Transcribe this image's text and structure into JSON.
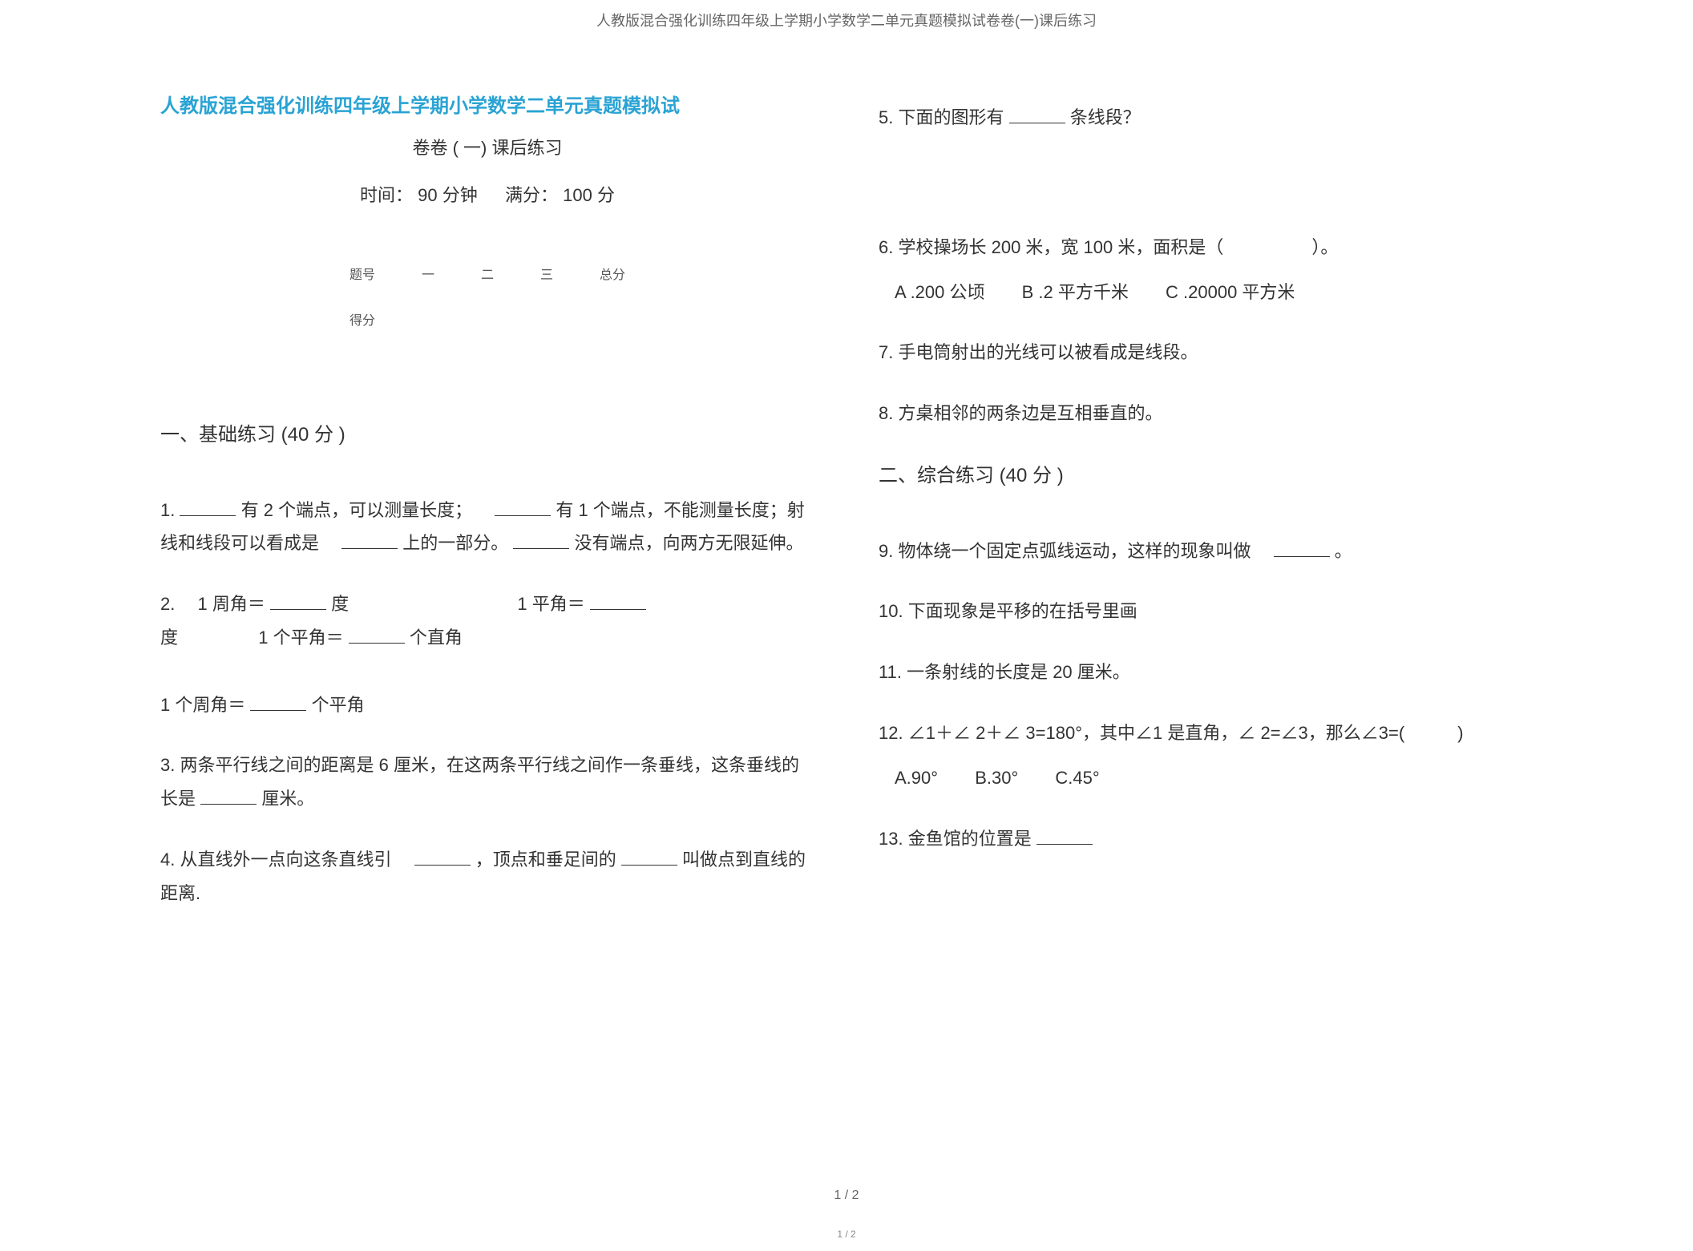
{
  "header": "人教版混合强化训练四年级上学期小学数学二单元真题模拟试卷卷(一)课后练习",
  "title_main": "人教版混合强化训练四年级上学期小学数学二单元真题模拟试",
  "title_sub": "卷卷 ( 一) 课后练习",
  "time_label": "时间：",
  "time_value": "90 分钟",
  "score_label": "满分：",
  "score_value": "100 分",
  "table": {
    "row1": {
      "c0": "题号",
      "c1": "一",
      "c2": "二",
      "c3": "三",
      "c4": "总分"
    },
    "row2": {
      "c0": "得分"
    }
  },
  "section1_title": "一、基础练习  (40 分 )",
  "section2_title": "二、综合练习  (40 分 )",
  "q1": {
    "num": "1.",
    "t1": " 有 2 个端点，可以测量长度；",
    "t2": " 有 1 个端点，不能测量长度；射线和线段可以看成是",
    "t3": "上的一部分。",
    "t4": "没有端点，向两方无限延伸。"
  },
  "q2": {
    "num": "2.",
    "t1": "1 周角＝",
    "t2": "度",
    "t3": "1 平角＝",
    "t4": "度",
    "t5": "1 个平角＝",
    "t6": "个直角",
    "t7": "1 个周角＝",
    "t8": "个平角"
  },
  "q3": {
    "num": "3.",
    "text": "两条平行线之间的距离是 6 厘米，在这两条平行线之间作一条垂线，这条垂线的长是",
    "tail": "厘米。"
  },
  "q4": {
    "num": "4.",
    "t1": "从直线外一点向这条直线引",
    "t2": "，顶点和垂足间的",
    "t3": "叫做点到直线的距离."
  },
  "q5": {
    "num": "5.",
    "t1": "下面的图形有",
    "t2": "条线段？"
  },
  "q6": {
    "num": "6.",
    "text": "学校操场长 200 米，宽 100 米，面积是（　　　　　）。",
    "optA": "A .200 公顷",
    "optB": "B .2  平方千米",
    "optC": "C .20000 平方米"
  },
  "q7": {
    "num": "7.",
    "text": "手电筒射出的光线可以被看成是线段。"
  },
  "q8": {
    "num": "8.",
    "text": "方桌相邻的两条边是互相垂直的。"
  },
  "q9": {
    "num": "9.",
    "text": "物体绕一个固定点弧线运动，这样的现象叫做",
    "tail": "。"
  },
  "q10": {
    "num": "10.",
    "text": "下面现象是平移的在括号里画"
  },
  "q11": {
    "num": "11.",
    "text": "一条射线的长度是  20 厘米。"
  },
  "q12": {
    "num": "12.",
    "text": "∠1＋∠ 2＋∠ 3=180°，其中∠1  是直角，∠ 2=∠3，那么∠3=(　　　)",
    "optA": "A.90°",
    "optB": "B.30°",
    "optC": "C.45°"
  },
  "q13": {
    "num": "13.",
    "text": "金鱼馆的位置是"
  },
  "page_num": "1 / 2",
  "page_num_small": "1 / 2",
  "colors": {
    "title": "#2aa3d4",
    "text": "#333333",
    "header": "#666666",
    "bg": "#ffffff"
  },
  "fonts": {
    "body_size": 22,
    "title_size": 24,
    "header_size": 18,
    "table_size": 16
  }
}
